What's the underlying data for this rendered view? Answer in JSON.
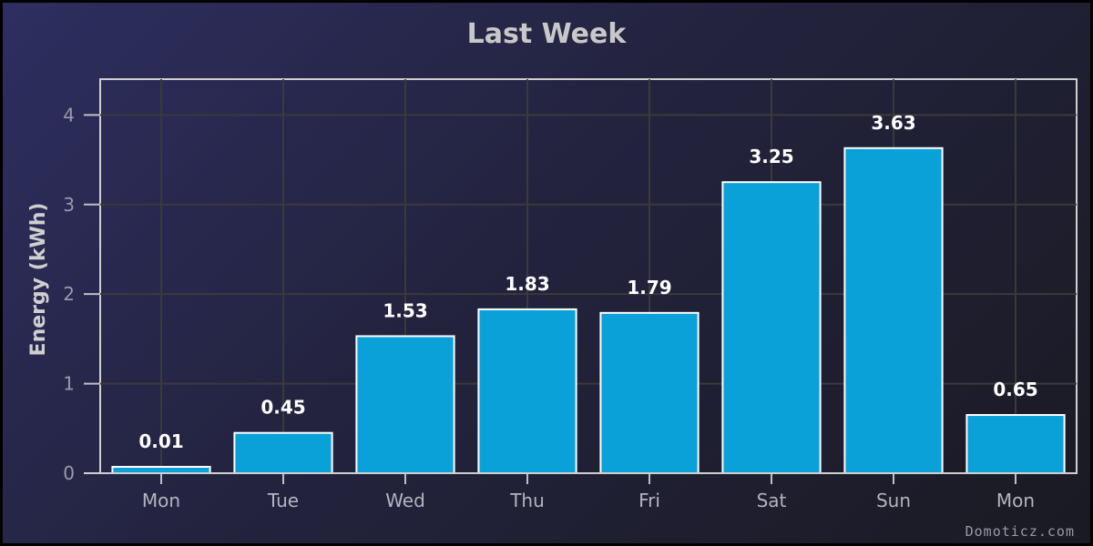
{
  "chart_data": {
    "type": "bar",
    "title": "Last Week",
    "xlabel": "",
    "ylabel": "Energy (kWh)",
    "categories": [
      "Mon",
      "Tue",
      "Wed",
      "Thu",
      "Fri",
      "Sat",
      "Sun",
      "Mon"
    ],
    "values": [
      0.01,
      0.45,
      1.53,
      1.83,
      1.79,
      3.25,
      3.63,
      0.65
    ],
    "value_labels": [
      "0.01",
      "0.45",
      "1.53",
      "1.83",
      "1.79",
      "3.25",
      "3.63",
      "0.65"
    ],
    "yticks": [
      "0",
      "1",
      "2",
      "3",
      "4"
    ],
    "ylim": [
      0,
      4.4
    ],
    "grid": true,
    "bar_color": "#0aa0d8"
  },
  "credit": "Domoticz.com"
}
